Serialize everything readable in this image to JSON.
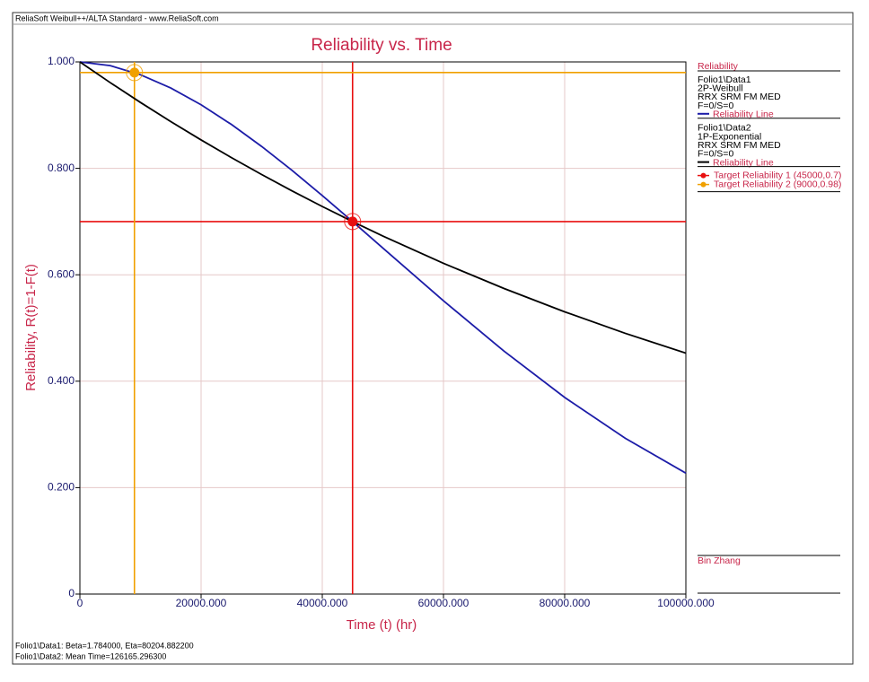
{
  "header": "ReliaSoft Weibull++/ALTA Standard - www.ReliaSoft.com",
  "footer": [
    "Folio1\\Data1: Beta=1.784000, Eta=80204.882200",
    "Folio1\\Data2: Mean Time=126165.296300"
  ],
  "author": "Bin Zhang",
  "chart_data": {
    "type": "line",
    "title": "Reliability vs. Time",
    "xlabel": "Time (t) (hr)",
    "ylabel": "Reliability, R(t)=1-F(t)",
    "legend_heading": "Reliability",
    "x": [
      0,
      5000,
      10000,
      15000,
      20000,
      25000,
      30000,
      35000,
      40000,
      45000,
      50000,
      60000,
      70000,
      80000,
      90000,
      100000
    ],
    "series": [
      {
        "name": "Reliability Line",
        "color": "#1c1ca8",
        "info": [
          "Folio1\\Data1",
          "2P-Weibull",
          "RRX SRM FM MED",
          "F=0/S=0"
        ],
        "values": [
          1,
          0.993,
          0.9759,
          0.951,
          0.9195,
          0.8825,
          0.8411,
          0.7963,
          0.7489,
          0.7,
          0.6502,
          0.5511,
          0.4564,
          0.3695,
          0.2928,
          0.2272
        ]
      },
      {
        "name": "Reliability Line",
        "color": "#000000",
        "info": [
          "Folio1\\Data2",
          "1P-Exponential",
          "RRX SRM FM MED",
          "F=0/S=0"
        ],
        "values": [
          1,
          0.9611,
          0.9238,
          0.8879,
          0.8534,
          0.8202,
          0.7884,
          0.7577,
          0.7283,
          0.7,
          0.6728,
          0.6215,
          0.5742,
          0.5304,
          0.49,
          0.4527
        ]
      }
    ],
    "targets": [
      {
        "name": "Target Reliability 1 (45000,0.7)",
        "x": 45000,
        "y": 0.7,
        "color": "#e81010"
      },
      {
        "name": "Target Reliability 2 (9000,0.98)",
        "x": 9000,
        "y": 0.98,
        "color": "#f0a000"
      }
    ],
    "xlim": [
      0,
      100000
    ],
    "ylim": [
      0,
      1
    ],
    "xticks": [
      0,
      {
        "value": 20000,
        "label": "20000.000"
      },
      {
        "value": 40000,
        "label": "40000.000"
      },
      {
        "value": 60000,
        "label": "60000.000"
      },
      {
        "value": 80000,
        "label": "80000.000"
      },
      {
        "value": 100000,
        "label": "100000.000"
      }
    ],
    "yticks": [
      0,
      {
        "value": 0.2,
        "label": "0.200"
      },
      {
        "value": 0.4,
        "label": "0.400"
      },
      {
        "value": 0.6,
        "label": "0.600"
      },
      {
        "value": 0.8,
        "label": "0.800"
      },
      {
        "value": 1,
        "label": "1.000"
      }
    ],
    "grid": true
  }
}
